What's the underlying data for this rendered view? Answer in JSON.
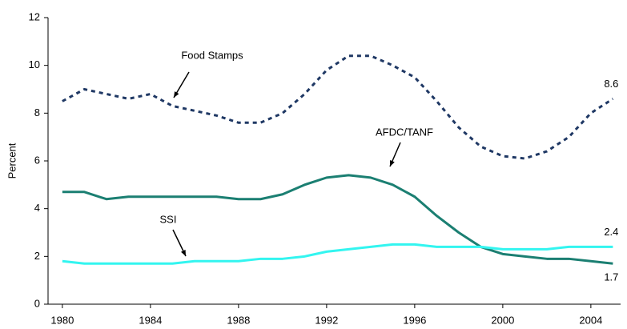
{
  "chart_data": {
    "type": "line",
    "y_label": "Percent",
    "x": [
      1980,
      1981,
      1982,
      1983,
      1984,
      1985,
      1986,
      1987,
      1988,
      1989,
      1990,
      1991,
      1992,
      1993,
      1994,
      1995,
      1996,
      1997,
      1998,
      1999,
      2000,
      2001,
      2002,
      2003,
      2004,
      2005
    ],
    "series": [
      {
        "name": "Food Stamps",
        "color": "#1f3864",
        "dashed": true,
        "values": [
          8.5,
          9.0,
          8.8,
          8.6,
          8.8,
          8.3,
          8.1,
          7.9,
          7.6,
          7.6,
          8.0,
          8.8,
          9.8,
          10.4,
          10.4,
          10.0,
          9.5,
          8.5,
          7.4,
          6.6,
          6.2,
          6.1,
          6.4,
          7.0,
          8.0,
          8.6
        ]
      },
      {
        "name": "AFDC/TANF",
        "color": "#1b7f72",
        "dashed": false,
        "values": [
          4.7,
          4.7,
          4.4,
          4.5,
          4.5,
          4.5,
          4.5,
          4.5,
          4.4,
          4.4,
          4.6,
          5.0,
          5.3,
          5.4,
          5.3,
          5.0,
          4.5,
          3.7,
          3.0,
          2.4,
          2.1,
          2.0,
          1.9,
          1.9,
          1.8,
          1.7
        ]
      },
      {
        "name": "SSI",
        "color": "#33f5f0",
        "dashed": false,
        "values": [
          1.8,
          1.7,
          1.7,
          1.7,
          1.7,
          1.7,
          1.8,
          1.8,
          1.8,
          1.9,
          1.9,
          2.0,
          2.2,
          2.3,
          2.4,
          2.5,
          2.5,
          2.4,
          2.4,
          2.4,
          2.3,
          2.3,
          2.3,
          2.4,
          2.4,
          2.4
        ]
      }
    ],
    "xlim": [
      1979.35,
      2005.35
    ],
    "xticks": [
      1980,
      1984,
      1988,
      1992,
      1996,
      2000,
      2004
    ],
    "ylim": [
      0,
      12
    ],
    "yticks": [
      0,
      2,
      4,
      6,
      8,
      10,
      12
    ],
    "grid": false
  }
}
